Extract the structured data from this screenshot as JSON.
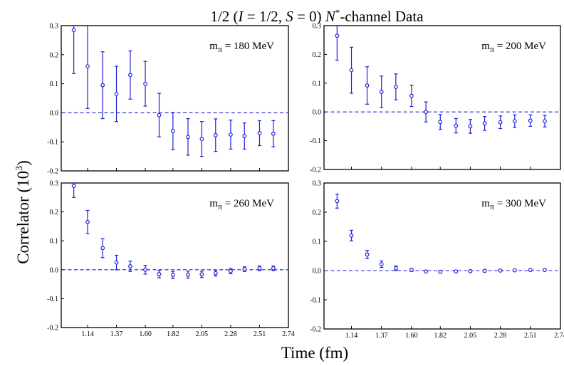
{
  "figure": {
    "title": "1/2   (I = 1/2, S = 0) N*-channel Data",
    "xlabel": "Time (fm)",
    "ylabel": "Correlator (10³)"
  },
  "style": {
    "color": "#1f1fd6",
    "baseline_color": "#1f1fd6"
  },
  "chart_data": [
    {
      "type": "scatter",
      "annotation": "mπ = 180 MeV",
      "x": [
        1.03,
        1.14,
        1.26,
        1.37,
        1.48,
        1.6,
        1.71,
        1.82,
        1.94,
        2.05,
        2.16,
        2.28,
        2.39,
        2.51,
        2.62
      ],
      "y": [
        0.285,
        0.16,
        0.095,
        0.065,
        0.13,
        0.1,
        -0.008,
        -0.063,
        -0.083,
        -0.09,
        -0.077,
        -0.075,
        -0.08,
        -0.07,
        -0.072
      ],
      "yerr": [
        0.15,
        0.145,
        0.115,
        0.095,
        0.083,
        0.077,
        0.075,
        0.064,
        0.063,
        0.06,
        0.056,
        0.05,
        0.045,
        0.043,
        0.045
      ],
      "xlim": [
        0.93,
        2.74
      ],
      "ylim": [
        -0.2,
        0.3
      ],
      "xticks": [
        "1.14",
        "1.37",
        "1.60",
        "1.82",
        "2.05",
        "2.28",
        "2.51",
        "2.74"
      ],
      "yticks": [
        "-0.2",
        "-0.1",
        "0.0",
        "0.1",
        "0.2",
        "0.3"
      ],
      "baseline": 0.0,
      "show_xtick_labels": false
    },
    {
      "type": "scatter",
      "annotation": "mπ = 200 MeV",
      "x": [
        1.03,
        1.14,
        1.26,
        1.37,
        1.48,
        1.6,
        1.71,
        1.82,
        1.94,
        2.05,
        2.16,
        2.28,
        2.39,
        2.51,
        2.62
      ],
      "y": [
        0.265,
        0.145,
        0.092,
        0.07,
        0.087,
        0.056,
        0.0,
        -0.035,
        -0.048,
        -0.05,
        -0.04,
        -0.036,
        -0.032,
        -0.03,
        -0.032
      ],
      "yerr": [
        0.085,
        0.08,
        0.065,
        0.055,
        0.045,
        0.037,
        0.035,
        0.026,
        0.025,
        0.024,
        0.024,
        0.022,
        0.022,
        0.02,
        0.02
      ],
      "xlim": [
        0.93,
        2.74
      ],
      "ylim": [
        -0.2,
        0.3
      ],
      "xticks": [
        "1.14",
        "1.37",
        "1.60",
        "1.82",
        "2.05",
        "2.28",
        "2.51",
        "2.74"
      ],
      "yticks": [
        "-0.2",
        "-0.1",
        "0.0",
        "0.1",
        "0.2",
        "0.3"
      ],
      "baseline": 0.0,
      "show_xtick_labels": false
    },
    {
      "type": "scatter",
      "annotation": "mπ = 260 MeV",
      "x": [
        1.03,
        1.14,
        1.26,
        1.37,
        1.48,
        1.6,
        1.71,
        1.82,
        1.94,
        2.05,
        2.16,
        2.28,
        2.39,
        2.51,
        2.62
      ],
      "y": [
        0.29,
        0.165,
        0.075,
        0.025,
        0.012,
        0.0,
        -0.015,
        -0.018,
        -0.017,
        -0.016,
        -0.012,
        -0.005,
        0.002,
        0.005,
        0.005
      ],
      "yerr": [
        0.04,
        0.04,
        0.033,
        0.025,
        0.018,
        0.015,
        0.013,
        0.012,
        0.012,
        0.011,
        0.01,
        0.009,
        0.008,
        0.008,
        0.008
      ],
      "xlim": [
        0.93,
        2.74
      ],
      "ylim": [
        -0.2,
        0.3
      ],
      "xticks": [
        "1.14",
        "1.37",
        "1.60",
        "1.82",
        "2.05",
        "2.28",
        "2.51",
        "2.74"
      ],
      "yticks": [
        "-0.2",
        "-0.1",
        "0.0",
        "0.1",
        "0.2",
        "0.3"
      ],
      "baseline": 0.0,
      "show_xtick_labels": true
    },
    {
      "type": "scatter",
      "annotation": "mπ = 300 MeV",
      "x": [
        1.03,
        1.14,
        1.26,
        1.37,
        1.48,
        1.6,
        1.71,
        1.82,
        1.94,
        2.05,
        2.16,
        2.28,
        2.39,
        2.51,
        2.62
      ],
      "y": [
        0.238,
        0.12,
        0.055,
        0.022,
        0.008,
        0.002,
        -0.003,
        -0.004,
        -0.003,
        -0.002,
        -0.001,
        0.0,
        0.001,
        0.002,
        0.002
      ],
      "yerr": [
        0.024,
        0.018,
        0.014,
        0.011,
        0.008,
        0.005,
        0.004,
        0.004,
        0.003,
        0.003,
        0.003,
        0.003,
        0.003,
        0.003,
        0.003
      ],
      "xlim": [
        0.93,
        2.74
      ],
      "ylim": [
        -0.2,
        0.3
      ],
      "xticks": [
        "1.14",
        "1.37",
        "1.60",
        "1.82",
        "2.05",
        "2.28",
        "2.51",
        "2.74"
      ],
      "yticks": [
        "-0.2",
        "-0.1",
        "0.0",
        "0.1",
        "0.2",
        "0.3"
      ],
      "baseline": 0.0,
      "show_xtick_labels": true
    }
  ]
}
